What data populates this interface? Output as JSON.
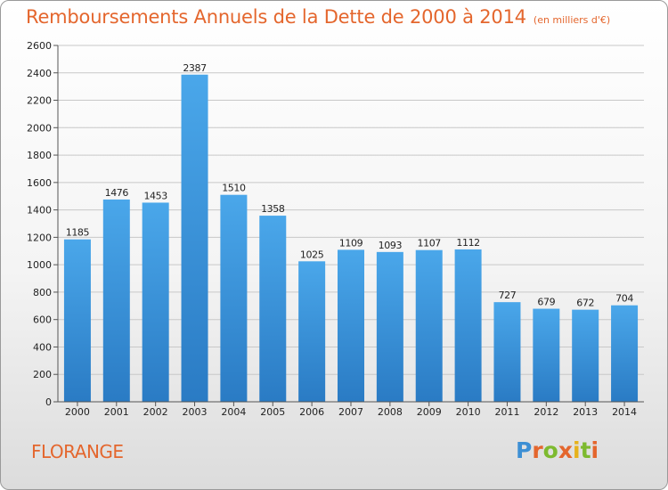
{
  "header": {
    "title": "Remboursements Annuels de la Dette de 2000 à 2014",
    "subtitle": "(en milliers d'€)"
  },
  "commune": "FLORANGE",
  "logo": {
    "text": "Proxiti",
    "colors": [
      "#3d8fd4",
      "#e4662d",
      "#7dba2f",
      "#e6b21c"
    ]
  },
  "chart_data": {
    "type": "bar",
    "title": "Remboursements Annuels de la Dette de 2000 à 2014",
    "subtitle": "(en milliers d'€)",
    "categories": [
      "2000",
      "2001",
      "2002",
      "2003",
      "2004",
      "2005",
      "2006",
      "2007",
      "2008",
      "2009",
      "2010",
      "2011",
      "2012",
      "2013",
      "2014"
    ],
    "values": [
      1185,
      1476,
      1453,
      2387,
      1510,
      1358,
      1025,
      1109,
      1093,
      1107,
      1112,
      727,
      679,
      672,
      704
    ],
    "ylim": [
      0,
      2600
    ],
    "yticks": [
      0,
      200,
      400,
      600,
      800,
      1000,
      1200,
      1400,
      1600,
      1800,
      2000,
      2200,
      2400,
      2600
    ],
    "grid": true,
    "bar_color": "#3f9be0",
    "bar_color_dark": "#2a7bc4",
    "grid_color": "#c8c8c8"
  }
}
